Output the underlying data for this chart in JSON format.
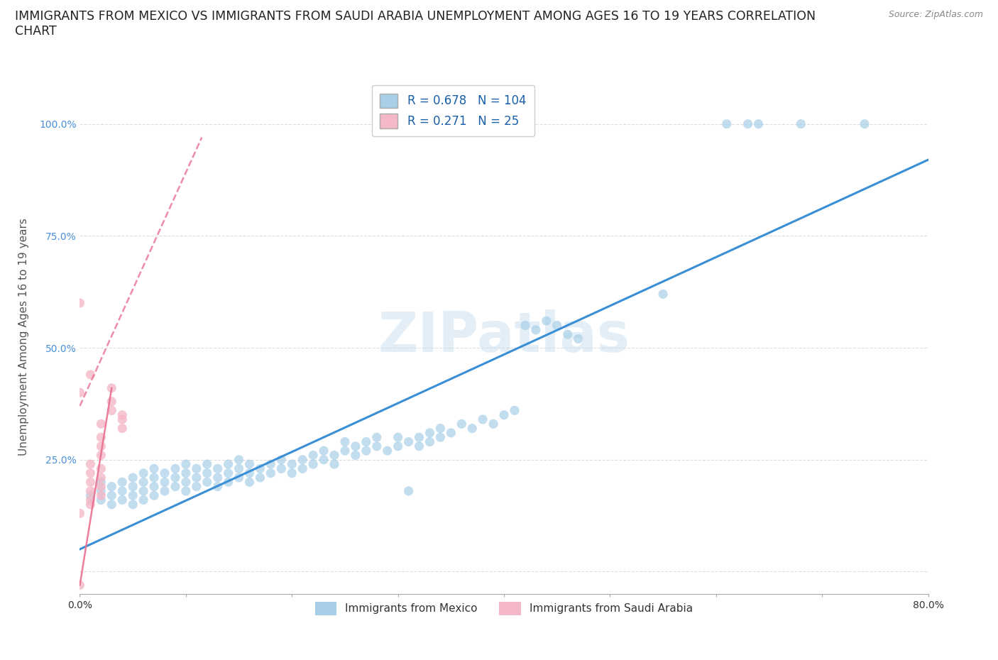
{
  "title_line1": "IMMIGRANTS FROM MEXICO VS IMMIGRANTS FROM SAUDI ARABIA UNEMPLOYMENT AMONG AGES 16 TO 19 YEARS CORRELATION",
  "title_line2": "CHART",
  "source": "Source: ZipAtlas.com",
  "ylabel": "Unemployment Among Ages 16 to 19 years",
  "xlim": [
    0.0,
    0.8
  ],
  "ylim": [
    -0.05,
    1.1
  ],
  "mexico_color": "#a8cfe8",
  "saudi_color": "#f4b8c8",
  "mexico_R": 0.678,
  "mexico_N": 104,
  "saudi_R": 0.271,
  "saudi_N": 25,
  "legend_R_color": "#1a5fa8",
  "background_color": "#ffffff",
  "grid_color": "#dddddd",
  "mexico_line_color": "#3a8fd4",
  "saudi_line_color": "#e87090",
  "watermark": "ZIPatlas",
  "title_fontsize": 12.5,
  "axis_label_fontsize": 11,
  "mexico_scatter": [
    [
      0.01,
      0.17
    ],
    [
      0.02,
      0.18
    ],
    [
      0.02,
      0.16
    ],
    [
      0.02,
      0.2
    ],
    [
      0.03,
      0.17
    ],
    [
      0.03,
      0.19
    ],
    [
      0.03,
      0.15
    ],
    [
      0.04,
      0.18
    ],
    [
      0.04,
      0.2
    ],
    [
      0.04,
      0.16
    ],
    [
      0.05,
      0.19
    ],
    [
      0.05,
      0.17
    ],
    [
      0.05,
      0.21
    ],
    [
      0.05,
      0.15
    ],
    [
      0.06,
      0.2
    ],
    [
      0.06,
      0.18
    ],
    [
      0.06,
      0.22
    ],
    [
      0.06,
      0.16
    ],
    [
      0.07,
      0.19
    ],
    [
      0.07,
      0.21
    ],
    [
      0.07,
      0.17
    ],
    [
      0.07,
      0.23
    ],
    [
      0.08,
      0.2
    ],
    [
      0.08,
      0.22
    ],
    [
      0.08,
      0.18
    ],
    [
      0.09,
      0.21
    ],
    [
      0.09,
      0.19
    ],
    [
      0.09,
      0.23
    ],
    [
      0.1,
      0.22
    ],
    [
      0.1,
      0.2
    ],
    [
      0.1,
      0.18
    ],
    [
      0.1,
      0.24
    ],
    [
      0.11,
      0.21
    ],
    [
      0.11,
      0.23
    ],
    [
      0.11,
      0.19
    ],
    [
      0.12,
      0.22
    ],
    [
      0.12,
      0.2
    ],
    [
      0.12,
      0.24
    ],
    [
      0.13,
      0.21
    ],
    [
      0.13,
      0.23
    ],
    [
      0.13,
      0.19
    ],
    [
      0.14,
      0.22
    ],
    [
      0.14,
      0.2
    ],
    [
      0.14,
      0.24
    ],
    [
      0.15,
      0.23
    ],
    [
      0.15,
      0.21
    ],
    [
      0.15,
      0.25
    ],
    [
      0.16,
      0.22
    ],
    [
      0.16,
      0.24
    ],
    [
      0.16,
      0.2
    ],
    [
      0.17,
      0.23
    ],
    [
      0.17,
      0.21
    ],
    [
      0.18,
      0.24
    ],
    [
      0.18,
      0.22
    ],
    [
      0.19,
      0.25
    ],
    [
      0.19,
      0.23
    ],
    [
      0.2,
      0.24
    ],
    [
      0.2,
      0.22
    ],
    [
      0.21,
      0.25
    ],
    [
      0.21,
      0.23
    ],
    [
      0.22,
      0.26
    ],
    [
      0.22,
      0.24
    ],
    [
      0.23,
      0.27
    ],
    [
      0.23,
      0.25
    ],
    [
      0.24,
      0.26
    ],
    [
      0.24,
      0.24
    ],
    [
      0.25,
      0.27
    ],
    [
      0.25,
      0.29
    ],
    [
      0.26,
      0.28
    ],
    [
      0.26,
      0.26
    ],
    [
      0.27,
      0.29
    ],
    [
      0.27,
      0.27
    ],
    [
      0.28,
      0.3
    ],
    [
      0.28,
      0.28
    ],
    [
      0.29,
      0.27
    ],
    [
      0.3,
      0.3
    ],
    [
      0.3,
      0.28
    ],
    [
      0.31,
      0.29
    ],
    [
      0.31,
      0.18
    ],
    [
      0.32,
      0.3
    ],
    [
      0.32,
      0.28
    ],
    [
      0.33,
      0.31
    ],
    [
      0.33,
      0.29
    ],
    [
      0.34,
      0.32
    ],
    [
      0.34,
      0.3
    ],
    [
      0.35,
      0.31
    ],
    [
      0.36,
      0.33
    ],
    [
      0.37,
      0.32
    ],
    [
      0.38,
      0.34
    ],
    [
      0.39,
      0.33
    ],
    [
      0.4,
      0.35
    ],
    [
      0.41,
      0.36
    ],
    [
      0.42,
      0.55
    ],
    [
      0.43,
      0.54
    ],
    [
      0.44,
      0.56
    ],
    [
      0.45,
      0.55
    ],
    [
      0.46,
      0.53
    ],
    [
      0.47,
      0.52
    ],
    [
      0.55,
      0.62
    ],
    [
      0.61,
      1.0
    ],
    [
      0.63,
      1.0
    ],
    [
      0.64,
      1.0
    ],
    [
      0.68,
      1.0
    ],
    [
      0.74,
      1.0
    ]
  ],
  "saudi_scatter": [
    [
      0.0,
      -0.03
    ],
    [
      0.0,
      0.13
    ],
    [
      0.01,
      0.16
    ],
    [
      0.01,
      0.18
    ],
    [
      0.01,
      0.2
    ],
    [
      0.01,
      0.22
    ],
    [
      0.01,
      0.24
    ],
    [
      0.01,
      0.15
    ],
    [
      0.02,
      0.17
    ],
    [
      0.02,
      0.19
    ],
    [
      0.02,
      0.21
    ],
    [
      0.02,
      0.23
    ],
    [
      0.02,
      0.26
    ],
    [
      0.02,
      0.28
    ],
    [
      0.02,
      0.3
    ],
    [
      0.02,
      0.33
    ],
    [
      0.03,
      0.38
    ],
    [
      0.03,
      0.41
    ],
    [
      0.03,
      0.36
    ],
    [
      0.04,
      0.35
    ],
    [
      0.04,
      0.34
    ],
    [
      0.04,
      0.32
    ],
    [
      0.0,
      0.6
    ],
    [
      0.0,
      0.4
    ],
    [
      0.01,
      0.44
    ]
  ],
  "mexico_line_x": [
    0.0,
    0.8
  ],
  "mexico_line_y": [
    0.05,
    0.92
  ],
  "saudi_line_x": [
    0.0,
    0.115
  ],
  "saudi_line_y": [
    0.37,
    0.97
  ]
}
